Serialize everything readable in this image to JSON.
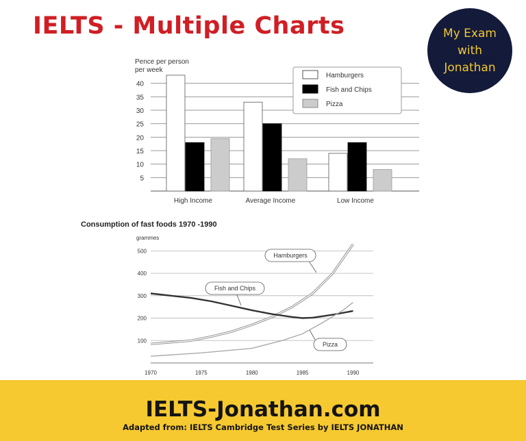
{
  "header": {
    "title": "IELTS -  Multiple Charts",
    "badge": [
      "My Exam",
      "with",
      "Jonathan"
    ]
  },
  "chart_data": [
    {
      "type": "bar",
      "ylabel": [
        "Pence per person",
        "per week"
      ],
      "categories": [
        "High Income",
        "Average Income",
        "Low Income"
      ],
      "yticks": [
        5,
        10,
        15,
        20,
        25,
        30,
        35,
        40
      ],
      "ylim": [
        0,
        45
      ],
      "grid": true,
      "legend": "top-right",
      "series": [
        {
          "name": "Hamburgers",
          "values": [
            43,
            33,
            14
          ],
          "color": "#ffffff"
        },
        {
          "name": "Fish and Chips",
          "values": [
            18,
            25,
            18
          ],
          "color": "#000000"
        },
        {
          "name": "Pizza",
          "values": [
            19.5,
            12,
            8
          ],
          "color": "#cccccc"
        }
      ]
    },
    {
      "type": "line",
      "title": "Consumption of fast foods 1970 -1990",
      "ylabel": "grammes",
      "xticks": [
        1970,
        1975,
        1980,
        1985,
        1990
      ],
      "yticks": [
        100,
        200,
        300,
        400,
        500
      ],
      "xlim": [
        1970,
        1992
      ],
      "ylim": [
        0,
        550
      ],
      "grid": true,
      "series": [
        {
          "name": "Hamburgers",
          "color": "#999999",
          "x": [
            1970,
            1972,
            1974,
            1976,
            1978,
            1980,
            1982,
            1984,
            1986,
            1988,
            1990
          ],
          "y": [
            85,
            92,
            100,
            118,
            140,
            170,
            205,
            250,
            310,
            400,
            530
          ]
        },
        {
          "name": "Fish and Chips",
          "color": "#333333",
          "x": [
            1970,
            1972,
            1974,
            1976,
            1978,
            1980,
            1982,
            1984,
            1985,
            1986,
            1988,
            1990
          ],
          "y": [
            310,
            300,
            290,
            275,
            255,
            235,
            218,
            205,
            200,
            202,
            215,
            232
          ]
        },
        {
          "name": "Pizza",
          "color": "#aaaaaa",
          "x": [
            1970,
            1975,
            1980,
            1983,
            1985,
            1987,
            1989,
            1990
          ],
          "y": [
            30,
            45,
            65,
            100,
            130,
            180,
            235,
            270
          ]
        }
      ]
    }
  ],
  "footer": {
    "site": "IELTS-Jonathan.com",
    "credit": "Adapted from: IELTS Cambridge Test Series  by IELTS JONATHAN"
  }
}
